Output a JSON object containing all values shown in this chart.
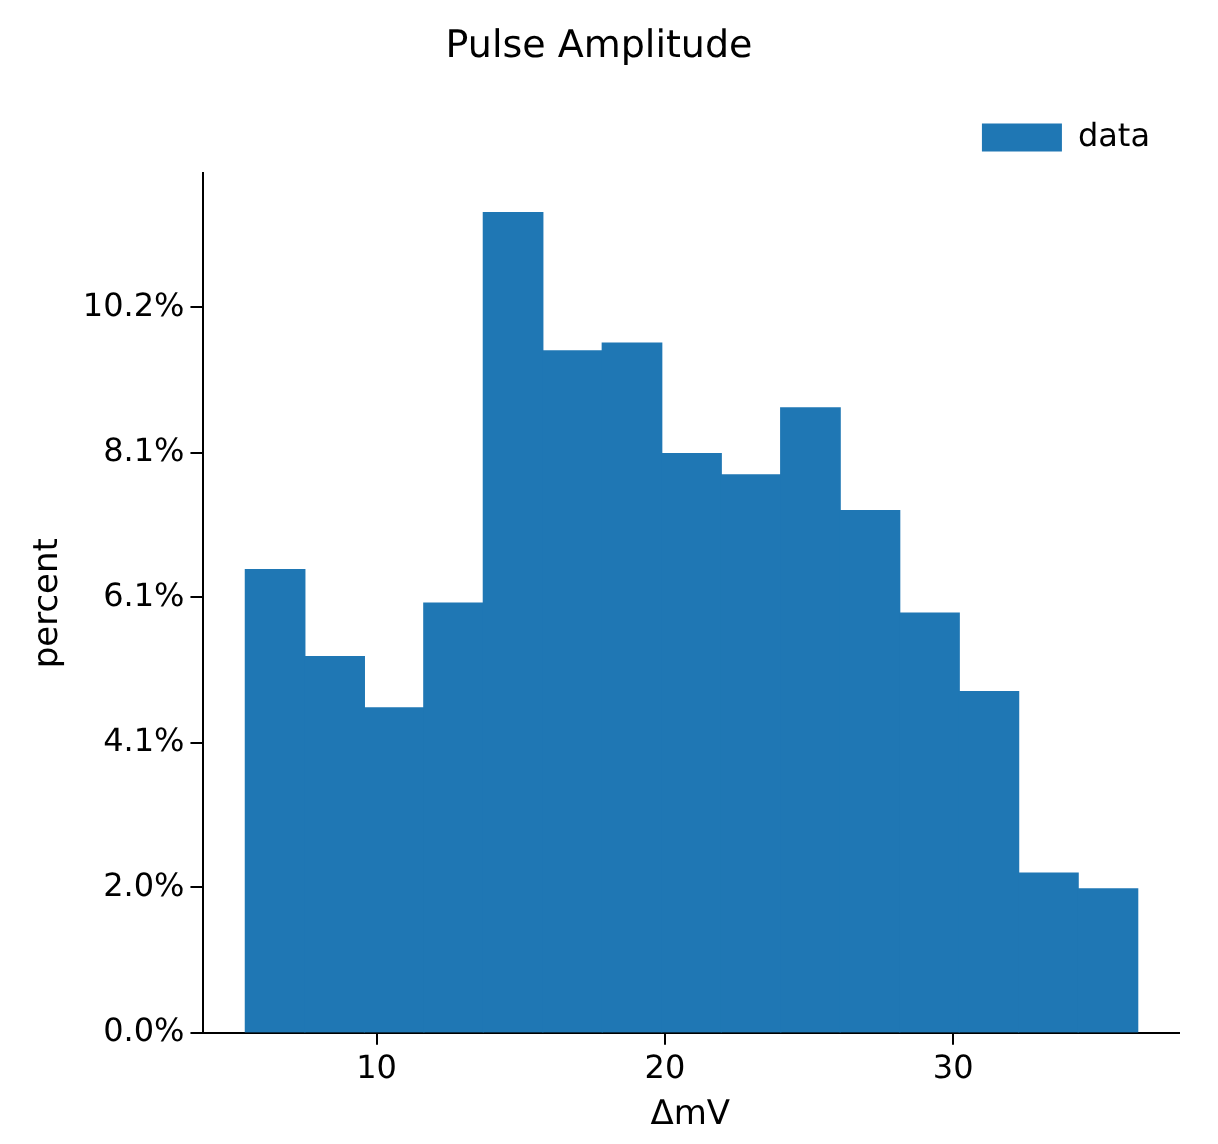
{
  "chart_data": {
    "type": "histogram",
    "title": "Pulse Amplitude",
    "xlabel": "ΔmV",
    "ylabel": "percent",
    "bins": [
      5.45,
      7.51,
      9.58,
      11.64,
      13.7,
      15.77,
      17.83,
      19.89,
      21.96,
      24.02,
      26.08,
      28.15,
      30.21,
      32.27,
      34.34,
      36.4
    ],
    "series": [
      {
        "name": "data",
        "color": "#1f77b4",
        "values": [
          6.5,
          5.28,
          4.56,
          6.03,
          11.51,
          9.57,
          9.68,
          8.13,
          7.83,
          8.77,
          7.33,
          5.89,
          4.79,
          2.24,
          2.02
        ]
      }
    ],
    "xlim": [
      3.96,
      37.8
    ],
    "xticks": [
      10,
      20,
      30
    ],
    "ylim": [
      0,
      12.06
    ],
    "yticks": [
      {
        "value": 0,
        "label": "0.0%"
      },
      {
        "value": 2.036,
        "label": "2.0%"
      },
      {
        "value": 4.072,
        "label": "4.1%"
      },
      {
        "value": 6.108,
        "label": "6.1%"
      },
      {
        "value": 8.144,
        "label": "8.1%"
      },
      {
        "value": 10.18,
        "label": "10.2%"
      }
    ],
    "legend": "top right",
    "grid": false
  }
}
